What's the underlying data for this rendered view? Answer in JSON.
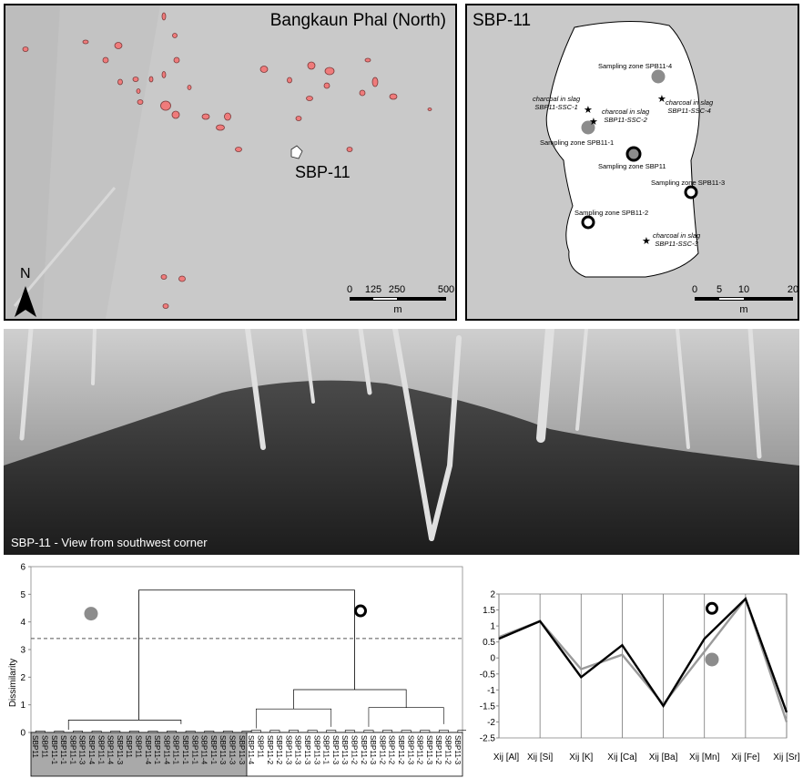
{
  "overview_map": {
    "title": "Bangkaun Phal (North)",
    "site_label": "SBP-11",
    "north_label": "N",
    "scale_labels": [
      "0",
      "125",
      "250",
      "500"
    ],
    "scale_unit": "m",
    "colors": {
      "background": "#c9c9c9",
      "feature": "#ef7b7b",
      "site": "#ffffff"
    }
  },
  "site_map": {
    "title": "SBP-11",
    "zones": [
      "Sampling zone SPB11-4",
      "Sampling zone SPB11-1",
      "Sampling zone SBP11",
      "Sampling zone SPB11-3",
      "Sampling zone SPB11-2"
    ],
    "charcoal_samples": [
      {
        "line1": "charcoal in slag",
        "line2": "SBP11-SSC-1"
      },
      {
        "line1": "charcoal in slag",
        "line2": "SBP11-SSC-2"
      },
      {
        "line1": "charcoal in slag",
        "line2": "SBP11-SSC-4"
      },
      {
        "line1": "charcoal in slag",
        "line2": "SBP11-SSC-3"
      }
    ],
    "scale_labels": [
      "0",
      "5",
      "10",
      "20"
    ],
    "scale_unit": "m"
  },
  "photo": {
    "caption": "SBP-11 - View from southwest corner"
  },
  "chart_data": [
    {
      "type": "dendrogram",
      "ylabel": "Dissimilarity",
      "ylim": [
        0,
        6
      ],
      "yticks": [
        "0",
        "1",
        "2",
        "3",
        "4",
        "5",
        "6"
      ],
      "truncation_line": 3.4,
      "top_merge_height": 5.15,
      "group_grey": {
        "merge_height": 0.45,
        "leaves": [
          "SBP11",
          "SBP11",
          "SBP11-1",
          "SBP11-1",
          "SBP11-1",
          "SBP11-3",
          "SBP11-4",
          "SBP11-1",
          "SBP11-4",
          "SBP11-3",
          "SBP11",
          "SBP11",
          "SBP11-4",
          "SBP11-1",
          "SBP11-4",
          "SBP11-1",
          "SBP11-1",
          "SBP11-1",
          "SBP11-4",
          "SBP11-1",
          "SBP11-3",
          "SBP11-3",
          "SBP11-3"
        ]
      },
      "group_ring": {
        "merge_height": 1.55,
        "subclusters": [
          0.85,
          0.9
        ],
        "leaves": [
          "SBP11-4",
          "SBP11",
          "SBP11-2",
          "SBP11-2",
          "SBP11-3",
          "SBP11-3",
          "SBP11-3",
          "SBP11-3",
          "SBP11-1",
          "SBP11-3",
          "SBP11-3",
          "SBP11-2",
          "SBP11-2",
          "SBP11-3",
          "SBP11-2",
          "SBP11-2",
          "SBP11-2",
          "SBP11-3",
          "SBP11-2",
          "SBP11-3",
          "SBP11-2",
          "SBP11-2",
          "SBP11-3"
        ]
      }
    },
    {
      "type": "line",
      "categories": [
        "Xij [Al]",
        "Xij [Si]",
        "Xij [K]",
        "Xij [Ca]",
        "Xij [Ba]",
        "Xij [Mn]",
        "Xij [Fe]",
        "Xij [Sr]"
      ],
      "ylim": [
        -2.5,
        2
      ],
      "yticks": [
        "2",
        "1.5",
        "1",
        "0.5",
        "0",
        "-0.5",
        "-1",
        "-1.5",
        "-2",
        "-2.5"
      ],
      "series": [
        {
          "values": [
            0.6,
            1.15,
            -0.6,
            0.4,
            -1.5,
            0.6,
            1.85,
            -1.7
          ],
          "color": "#000000"
        },
        {
          "values": [
            0.65,
            1.15,
            -0.35,
            0.1,
            -1.45,
            0.2,
            1.85,
            -2.0
          ],
          "color": "#9a9a9a"
        }
      ]
    }
  ]
}
